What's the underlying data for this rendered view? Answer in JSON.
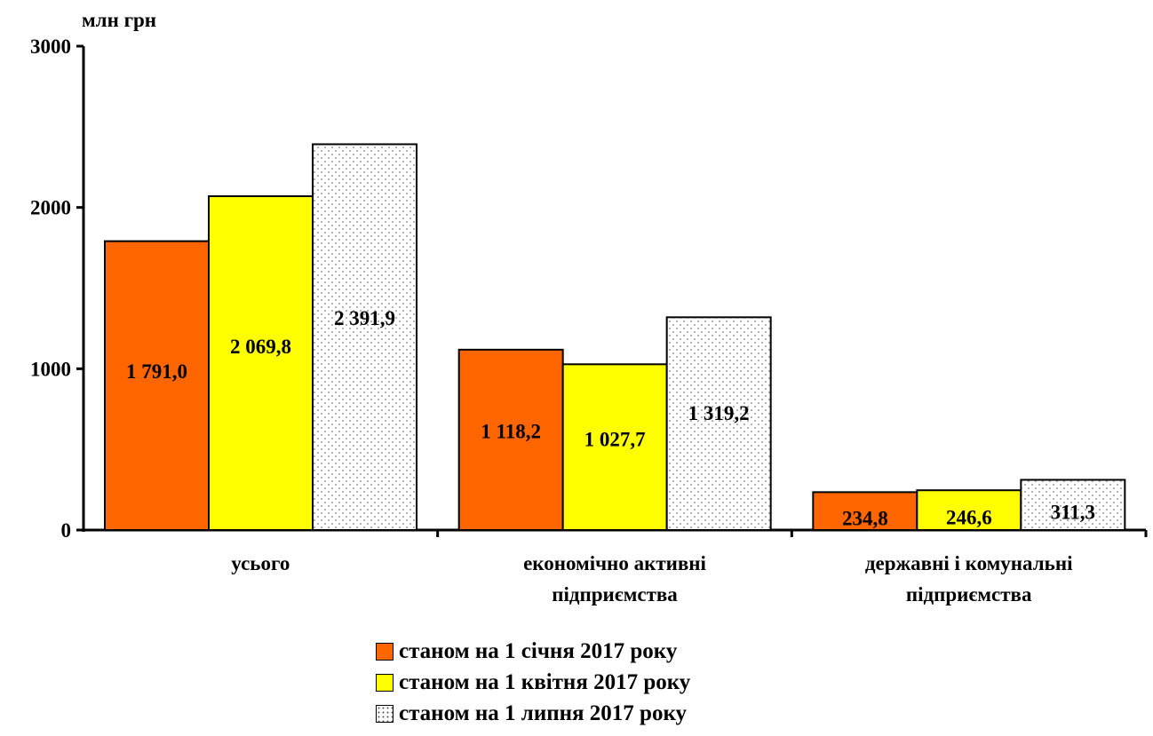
{
  "chart_data": {
    "type": "bar",
    "ylabel": "млн грн",
    "ylim": [
      0,
      3000
    ],
    "yticks": [
      0,
      1000,
      2000,
      3000
    ],
    "grid": false,
    "categories": [
      [
        "усього"
      ],
      [
        "економічно активні",
        "підприємства"
      ],
      [
        "державні і комунальні",
        "підприємства"
      ]
    ],
    "series": [
      {
        "name": "станом на 1 січня 2017 року",
        "color": "#ff6600",
        "pattern": "solid",
        "values": [
          1791.0,
          1118.2,
          234.8
        ],
        "labels": [
          "1 791,0",
          "1 118,2",
          "234,8"
        ]
      },
      {
        "name": "станом на 1 квітня 2017 року",
        "color": "#ffff00",
        "pattern": "solid",
        "values": [
          2069.8,
          1027.7,
          246.6
        ],
        "labels": [
          "2 069,8",
          "1 027,7",
          "246,6"
        ]
      },
      {
        "name": "станом на 1 липня 2017 року",
        "color": "#ffffff",
        "pattern": "dotted",
        "values": [
          2391.9,
          1319.2,
          311.3
        ],
        "labels": [
          "2 391,9",
          "1 319,2",
          "311,3"
        ]
      }
    ],
    "legend_position": "bottom"
  }
}
